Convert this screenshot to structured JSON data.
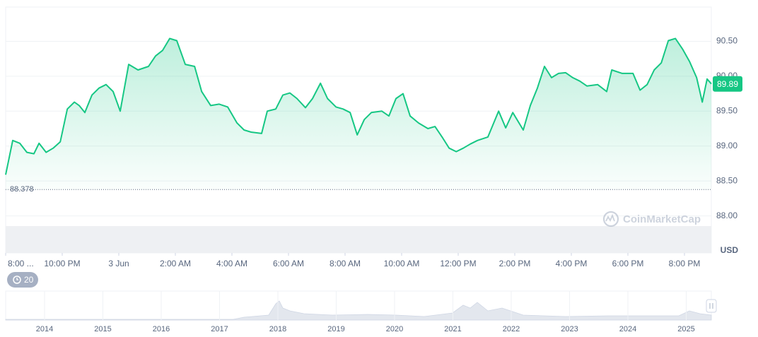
{
  "chart_data": {
    "type": "line",
    "color": "#16c784",
    "x": [
      0,
      0.25,
      0.5,
      0.75,
      1,
      1.18,
      1.43,
      1.68,
      1.93,
      2.18,
      2.43,
      2.6,
      2.8,
      3.05,
      3.3,
      3.55,
      3.8,
      4.05,
      4.35,
      4.68,
      5.05,
      5.3,
      5.55,
      5.8,
      6.05,
      6.35,
      6.68,
      6.93,
      7.25,
      7.55,
      7.85,
      8.18,
      8.43,
      8.68,
      9.05,
      9.25,
      9.55,
      9.8,
      10.05,
      10.3,
      10.6,
      10.85,
      11.13,
      11.38,
      11.68,
      11.93,
      12.18,
      12.43,
      12.68,
      12.93,
      13.3,
      13.55,
      13.8,
      14.05,
      14.3,
      14.6,
      14.93,
      15.18,
      15.43,
      15.68,
      15.93,
      16.18,
      16.43,
      16.68,
      17.05,
      17.43,
      17.68,
      17.93,
      18.3,
      18.55,
      18.8,
      19.05,
      19.3,
      19.55,
      19.8,
      20.05,
      20.3,
      20.55,
      20.93,
      21.25,
      21.43,
      21.8,
      22.18,
      22.43,
      22.68,
      22.93,
      23.18,
      23.43,
      23.68,
      23.93,
      24.18,
      24.43,
      24.63,
      24.8,
      24.95
    ],
    "values": [
      88.59,
      89.08,
      89.04,
      88.91,
      88.89,
      89.04,
      88.91,
      88.97,
      89.06,
      89.53,
      89.63,
      89.58,
      89.48,
      89.73,
      89.83,
      89.88,
      89.78,
      89.5,
      90.17,
      90.09,
      90.14,
      90.29,
      90.37,
      90.54,
      90.51,
      90.17,
      90.14,
      89.78,
      89.58,
      89.6,
      89.56,
      89.33,
      89.23,
      89.2,
      89.18,
      89.5,
      89.53,
      89.73,
      89.76,
      89.68,
      89.55,
      89.68,
      89.9,
      89.68,
      89.56,
      89.53,
      89.48,
      89.16,
      89.38,
      89.48,
      89.5,
      89.43,
      89.68,
      89.75,
      89.43,
      89.33,
      89.25,
      89.28,
      89.13,
      88.97,
      88.92,
      88.97,
      89.03,
      89.08,
      89.13,
      89.5,
      89.26,
      89.48,
      89.23,
      89.58,
      89.83,
      90.14,
      89.98,
      90.04,
      90.05,
      89.98,
      89.93,
      89.86,
      89.88,
      89.78,
      90.09,
      90.04,
      90.04,
      89.8,
      89.88,
      90.09,
      90.19,
      90.51,
      90.54,
      90.39,
      90.21,
      89.98,
      89.63,
      89.96,
      89.89
    ],
    "xlim": [
      0,
      24.95
    ],
    "xticks": [
      {
        "value": 0,
        "label": "8:00 ..."
      },
      {
        "value": 2,
        "label": "10:00 PM"
      },
      {
        "value": 4,
        "label": "3 Jun"
      },
      {
        "value": 6,
        "label": "2:00 AM"
      },
      {
        "value": 8,
        "label": "4:00 AM"
      },
      {
        "value": 10,
        "label": "6:00 AM"
      },
      {
        "value": 12,
        "label": "8:00 AM"
      },
      {
        "value": 14,
        "label": "10:00 AM"
      },
      {
        "value": 16,
        "label": "12:00 PM"
      },
      {
        "value": 18,
        "label": "2:00 PM"
      },
      {
        "value": 20,
        "label": "4:00 PM"
      },
      {
        "value": 22,
        "label": "6:00 PM"
      },
      {
        "value": 24,
        "label": "8:00 PM"
      }
    ],
    "ylim": [
      87.47,
      90.99
    ],
    "yticks": [
      {
        "value": 88,
        "label": "88.00"
      },
      {
        "value": 88.5,
        "label": "88.50"
      },
      {
        "value": 89,
        "label": "89.00"
      },
      {
        "value": 89.5,
        "label": "89.50"
      },
      {
        "value": 90,
        "label": "90.00"
      },
      {
        "value": 90.5,
        "label": "90.50"
      }
    ],
    "grid": true,
    "reference_line": 88.378,
    "current_price": 89.89,
    "currency": "USD",
    "watermark": "CoinMarketCap",
    "indicator_badge": "20",
    "navigator_years": [
      "2014",
      "2015",
      "2016",
      "2017",
      "2018",
      "2019",
      "2020",
      "2021",
      "2022",
      "2023",
      "2024",
      "2025"
    ]
  }
}
